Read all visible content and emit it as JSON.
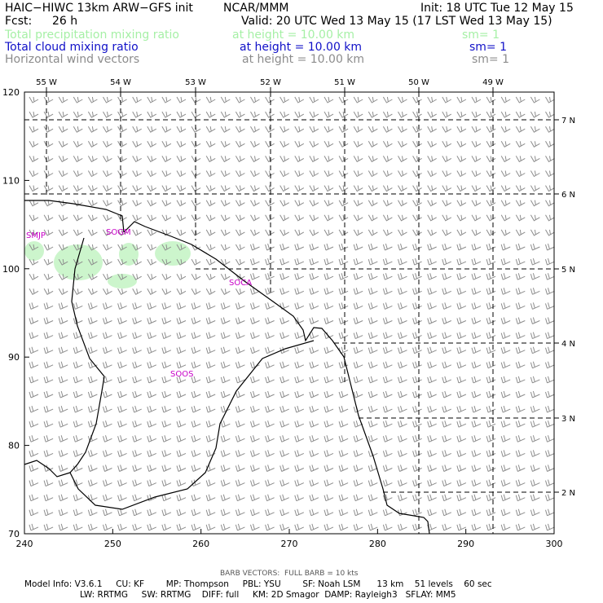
{
  "header": {
    "model": "HAIC−HIWC 13km ARW−GFS init",
    "org": "NCAR/MMM",
    "init": "Init: 18 UTC Tue 12 May 15",
    "fcst_label": "Fcst:",
    "fcst_value": "26 h",
    "valid": "Valid: 20 UTC Wed 13 May 15 (17 LST Wed 13 May 15)",
    "fields": [
      {
        "name": "Total precipitation mixing ratio",
        "height": "at height = 10.00 km",
        "sm": "sm= 1",
        "color": "#a6f0a6"
      },
      {
        "name": "Total cloud mixing ratio",
        "height": "at height = 10.00 km",
        "sm": "sm= 1",
        "color": "#1010c8"
      },
      {
        "name": "Horizontal wind vectors",
        "height": "at height = 10.00 km",
        "sm": "sm= 1",
        "color": "#8c8c8c"
      }
    ]
  },
  "map": {
    "x_ticks": [
      "240",
      "250",
      "260",
      "270",
      "280",
      "290",
      "300"
    ],
    "y_ticks": [
      "70",
      "80",
      "90",
      "100",
      "110",
      "120"
    ],
    "lon_labels": [
      "55 W",
      "54 W",
      "53 W",
      "52 W",
      "51 W",
      "50 W",
      "49 W"
    ],
    "lat_labels": [
      "7 N",
      "6 N",
      "5 N",
      "4 N",
      "3 N",
      "2 N"
    ],
    "stations": [
      "SMJP",
      "SOGM",
      "SOCA",
      "SOOS"
    ],
    "station_color": "#c800c8",
    "precip_color": "#ccf5cc",
    "barb_color": "#8c8c8c"
  },
  "footer": {
    "barb_note": "BARB VECTORS:  FULL BARB = 10 kts",
    "model_info_1": "Model Info: V3.6.1     CU: KF        MP: Thompson     PBL: YSU        SF: Noah LSM      13 km    51 levels    60 sec",
    "model_info_2": "LW: RRTMG     SW: RRTMG    DIFF: full     KM: 2D Smagor  DAMP: Rayleigh3   SFLAY: MM5"
  }
}
